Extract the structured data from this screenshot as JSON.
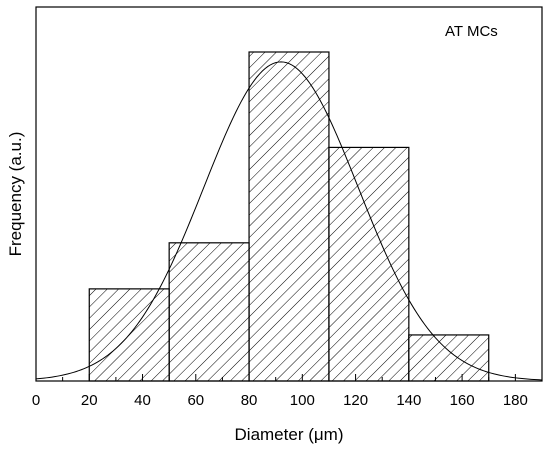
{
  "chart_data": {
    "type": "bar",
    "title": "",
    "annotation": "AT MCs",
    "xlabel": "Diameter (μm)",
    "ylabel": "Frequency (a.u.)",
    "xlim": [
      0,
      190
    ],
    "ylim": [
      0,
      10
    ],
    "xticks": [
      0,
      20,
      40,
      60,
      80,
      100,
      120,
      140,
      160,
      180
    ],
    "grid": false,
    "legend": "none",
    "fill_pattern": "diagonal-hatch",
    "bins": [
      {
        "x0": 20,
        "x1": 50,
        "value": 2.8
      },
      {
        "x0": 50,
        "x1": 80,
        "value": 4.2
      },
      {
        "x0": 80,
        "x1": 110,
        "value": 10.0
      },
      {
        "x0": 110,
        "x1": 140,
        "value": 7.1
      },
      {
        "x0": 140,
        "x1": 170,
        "value": 1.4
      }
    ],
    "fit_curve": {
      "type": "gaussian",
      "mean": 92,
      "sigma": 29,
      "amplitude": 9.7,
      "baseline": 0
    }
  }
}
